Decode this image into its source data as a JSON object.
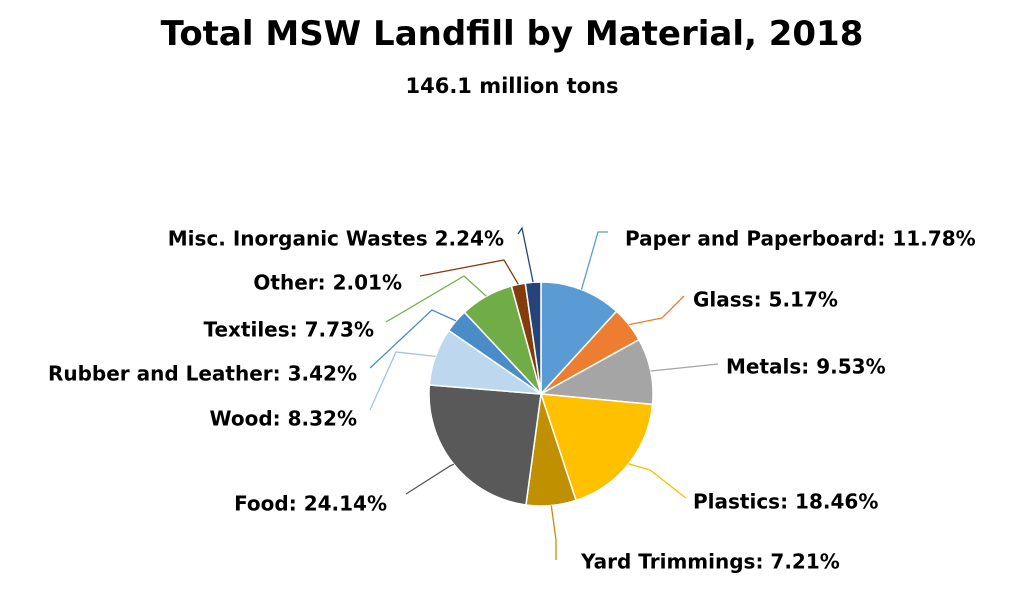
{
  "chart_data": {
    "type": "pie",
    "title": "Total MSW Landfill by Material, 2018",
    "subtitle": "146.1 million tons",
    "series": [
      {
        "name": "Paper and Paperboard",
        "value": 11.78,
        "label": "Paper and Paperboard: 11.78%",
        "color": "#5b9bd5"
      },
      {
        "name": "Glass",
        "value": 5.17,
        "label": "Glass: 5.17%",
        "color": "#ed7d31"
      },
      {
        "name": "Metals",
        "value": 9.53,
        "label": "Metals: 9.53%",
        "color": "#a5a5a5"
      },
      {
        "name": "Plastics",
        "value": 18.46,
        "label": "Plastics: 18.46%",
        "color": "#ffc000"
      },
      {
        "name": "Yard Trimmings",
        "value": 7.21,
        "label": "Yard Trimmings: 7.21%",
        "color": "#c09000"
      },
      {
        "name": "Food",
        "value": 24.14,
        "label": "Food: 24.14%",
        "color": "#595959"
      },
      {
        "name": "Wood",
        "value": 8.32,
        "label": "Wood: 8.32%",
        "color": "#bdd7ee"
      },
      {
        "name": "Rubber and Leather",
        "value": 3.42,
        "label": "Rubber and Leather: 3.42%",
        "color": "#4a8cc7"
      },
      {
        "name": "Textiles",
        "value": 7.73,
        "label": "Textiles: 7.73%",
        "color": "#70ad47"
      },
      {
        "name": "Other",
        "value": 2.01,
        "label": "Other: 2.01%",
        "color": "#843c0c"
      },
      {
        "name": "Misc. Inorganic Wastes",
        "value": 2.24,
        "label": "Misc. Inorganic Wastes 2.24%",
        "color": "#264478"
      }
    ]
  }
}
